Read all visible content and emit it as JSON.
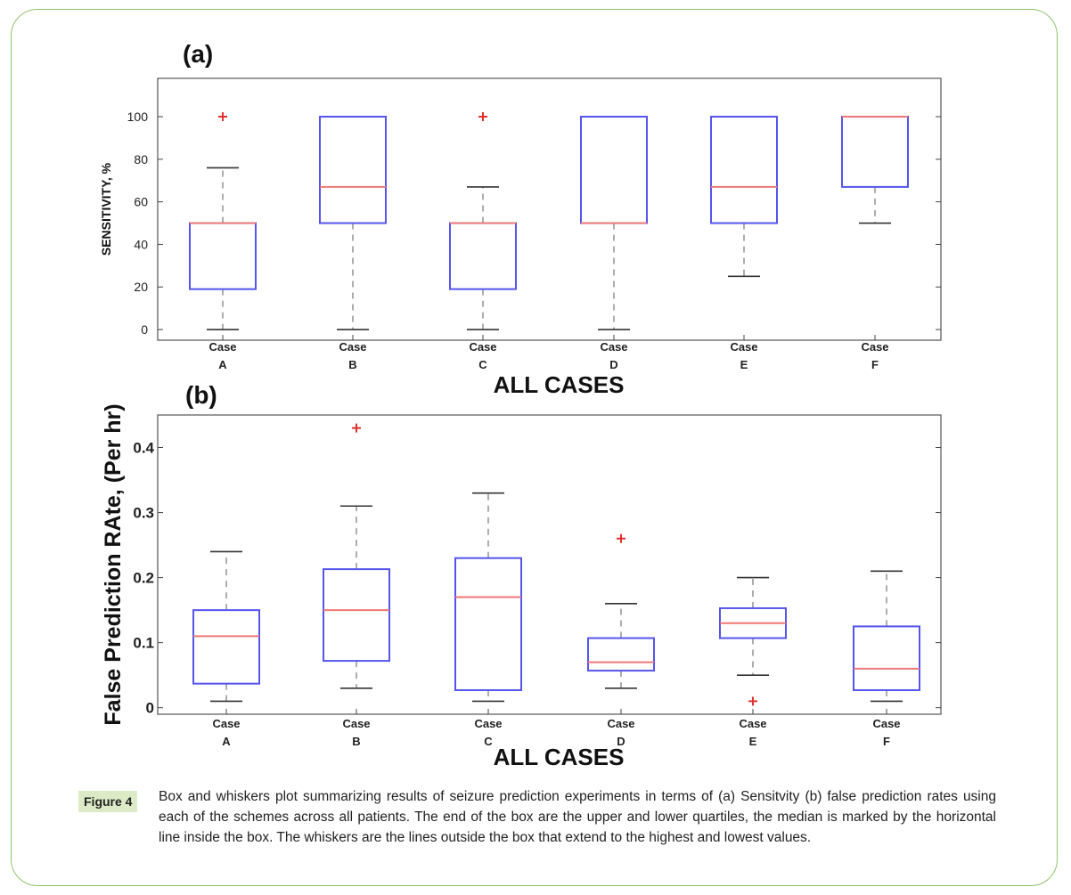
{
  "chart_data": [
    {
      "type": "box",
      "panel_label": "(a)",
      "ylabel": "SENSITIVITY, %",
      "xlabel": "ALL CASES",
      "ylim": [
        -5,
        118
      ],
      "yticks": [
        0,
        20,
        40,
        60,
        80,
        100
      ],
      "category_labels": [
        [
          "Case",
          "A"
        ],
        [
          "Case",
          "B"
        ],
        [
          "Case",
          "C"
        ],
        [
          "Case",
          "D"
        ],
        [
          "Case",
          "E"
        ],
        [
          "Case",
          "F"
        ]
      ],
      "boxes": [
        {
          "min": 0,
          "q1": 19,
          "median": 50,
          "q3": 50,
          "max": 76,
          "outliers": [
            100
          ]
        },
        {
          "min": 0,
          "q1": 50,
          "median": 67,
          "q3": 100,
          "max": 100,
          "outliers": []
        },
        {
          "min": 0,
          "q1": 19,
          "median": 50,
          "q3": 50,
          "max": 67,
          "outliers": [
            100
          ]
        },
        {
          "min": 0,
          "q1": 50,
          "median": 50,
          "q3": 100,
          "max": 100,
          "outliers": []
        },
        {
          "min": 25,
          "q1": 50,
          "median": 67,
          "q3": 100,
          "max": 100,
          "outliers": []
        },
        {
          "min": 50,
          "q1": 67,
          "median": 100,
          "q3": 100,
          "max": 100,
          "outliers": []
        }
      ]
    },
    {
      "type": "box",
      "panel_label": "(b)",
      "ylabel": "False Prediction RAte, (Per hr)",
      "xlabel": "ALL CASES",
      "ylim": [
        -0.01,
        0.45
      ],
      "yticks": [
        0,
        0.1,
        0.2,
        0.3,
        0.4
      ],
      "category_labels": [
        [
          "Case",
          "A"
        ],
        [
          "Case",
          "B"
        ],
        [
          "Case",
          "C"
        ],
        [
          "Case",
          "D"
        ],
        [
          "Case",
          "E"
        ],
        [
          "Case",
          "F"
        ]
      ],
      "boxes": [
        {
          "min": 0.01,
          "q1": 0.037,
          "median": 0.11,
          "q3": 0.15,
          "max": 0.24,
          "outliers": []
        },
        {
          "min": 0.03,
          "q1": 0.072,
          "median": 0.15,
          "q3": 0.213,
          "max": 0.31,
          "outliers": [
            0.43
          ]
        },
        {
          "min": 0.01,
          "q1": 0.027,
          "median": 0.17,
          "q3": 0.23,
          "max": 0.33,
          "outliers": []
        },
        {
          "min": 0.03,
          "q1": 0.057,
          "median": 0.07,
          "q3": 0.107,
          "max": 0.16,
          "outliers": [
            0.26
          ]
        },
        {
          "min": 0.05,
          "q1": 0.107,
          "median": 0.13,
          "q3": 0.153,
          "max": 0.2,
          "outliers": [
            0.01
          ]
        },
        {
          "min": 0.01,
          "q1": 0.027,
          "median": 0.06,
          "q3": 0.125,
          "max": 0.21,
          "outliers": []
        }
      ]
    }
  ],
  "caption": {
    "label": "Figure 4",
    "text": "Box and whiskers plot summarizing results of seizure prediction experiments in terms of (a) Sensitvity (b) false prediction rates using each of the schemes across all patients. The end of the box are the upper and lower quartiles, the median is marked by the horizontal line inside the box. The whiskers are the lines outside the box that extend to the highest and lowest values."
  },
  "colors": {
    "box": "#5555ee",
    "median": "#ee7777",
    "outlier": "#e03030",
    "whisker": "#999999",
    "cap": "#333333",
    "frame_border": "#8fc36c",
    "caption_label_bg": "#dcebc6"
  }
}
